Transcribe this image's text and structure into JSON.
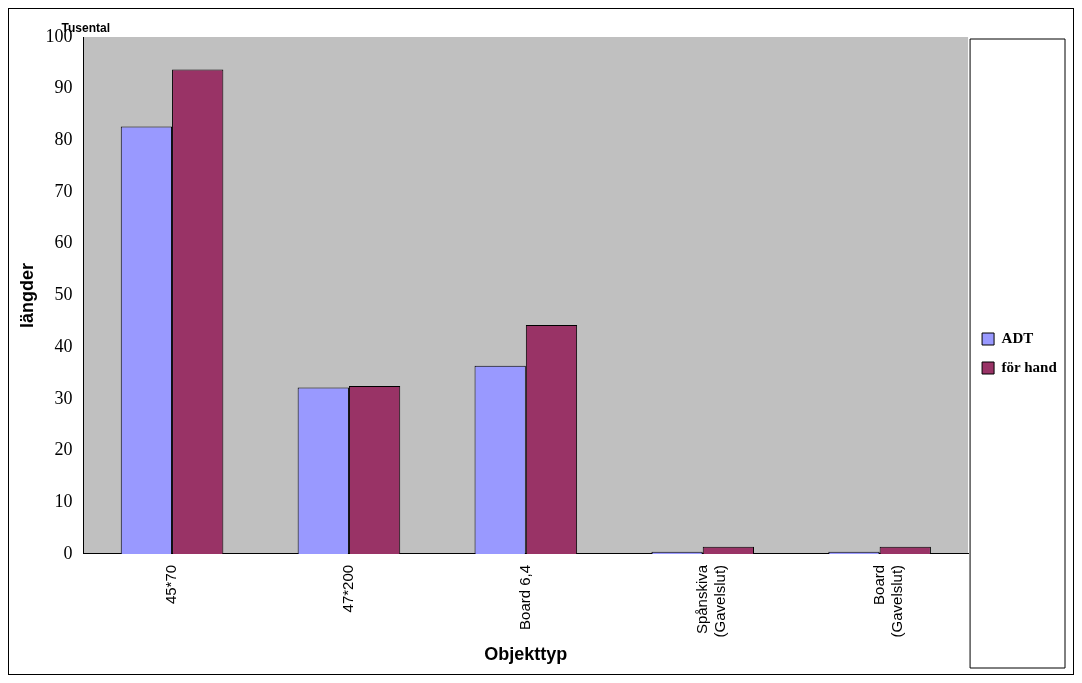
{
  "chart_data": {
    "type": "bar",
    "xlabel": "Objekttyp",
    "ylabel": "längder",
    "annotations": [
      "Tusental"
    ],
    "categories": [
      "45*70",
      "47*200",
      "Board 6,4",
      "Spånskiva (Gavelslut)",
      "Board (Gavelslut)"
    ],
    "series": [
      {
        "name": "ADT",
        "color": "#9999ff",
        "values": [
          82.7,
          32.2,
          36.4,
          0.4,
          0.4
        ]
      },
      {
        "name": "för hand",
        "color": "#993366",
        "values": [
          93.7,
          32.5,
          44.3,
          1.4,
          1.4
        ]
      }
    ],
    "ylim": [
      0,
      100
    ],
    "yticks": [
      0,
      10,
      20,
      30,
      40,
      50,
      60,
      70,
      80,
      90,
      100
    ],
    "grid": false,
    "legend": "right"
  }
}
